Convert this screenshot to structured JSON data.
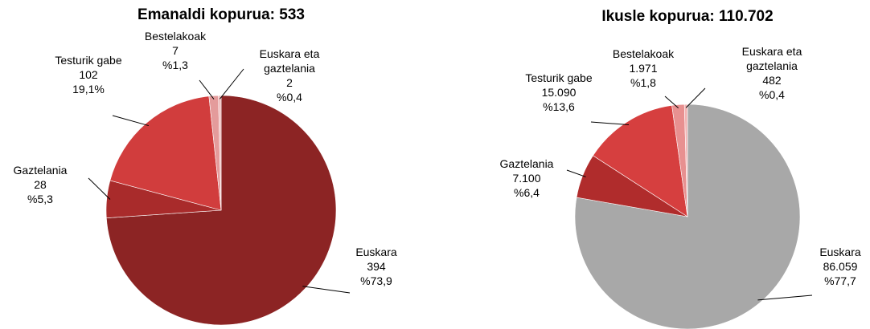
{
  "chart_data": [
    {
      "type": "pie",
      "title": "Emanaldi kopurua: 533",
      "categories": [
        "Euskara",
        "Gaztelania",
        "Testurik gabe",
        "Bestelakoak",
        "Euskara eta gaztelania"
      ],
      "values": [
        394,
        28,
        102,
        7,
        2
      ],
      "value_labels": [
        "394",
        "28",
        "102",
        "7",
        "2"
      ],
      "percentages": [
        73.9,
        5.3,
        19.1,
        1.3,
        0.4
      ],
      "percentage_labels": [
        "%73,9",
        "%5,3",
        "19,1%",
        "%1,3",
        "%0,4"
      ],
      "colors": [
        "#8c2424",
        "#a92b2b",
        "#d13d3d",
        "#e49b9b",
        "#efbdbd"
      ]
    },
    {
      "type": "pie",
      "title": "Ikusle kopurua: 110.702",
      "categories": [
        "Euskara",
        "Gaztelania",
        "Testurik gabe",
        "Bestelakoak",
        "Euskara eta gaztelania"
      ],
      "values": [
        86059,
        7100,
        15090,
        1971,
        482
      ],
      "value_labels": [
        "86.059",
        "7.100",
        "15.090",
        "1.971",
        "482"
      ],
      "percentages": [
        77.7,
        6.4,
        13.6,
        1.8,
        0.4
      ],
      "percentage_labels": [
        "%77,7",
        "%6,4",
        "%13,6",
        "%1,8",
        "%0,4"
      ],
      "colors": [
        "#a8a8a8",
        "#b02c2c",
        "#d63f3f",
        "#e89090",
        "#f2b3b3"
      ]
    }
  ]
}
